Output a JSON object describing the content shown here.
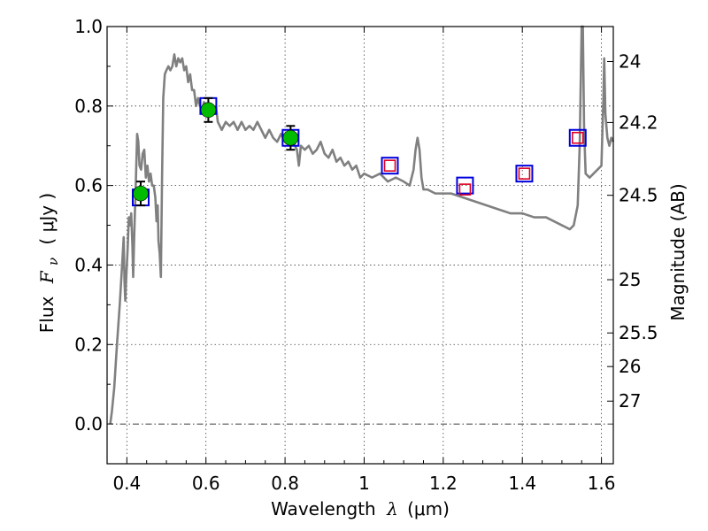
{
  "chart_data": {
    "type": "line",
    "xlabel": "Wavelength",
    "xlabel_symbol": "λ",
    "xlabel_unit": "(μm)",
    "ylabel": "Flux",
    "ylabel_symbol": "F",
    "ylabel_subscript": "ν",
    "ylabel_unit": "( μJy )",
    "y2label": "Magnitude (AB)",
    "xlim": [
      0.35,
      1.63
    ],
    "ylim": [
      -0.1,
      1.0
    ],
    "xticks": [
      0.4,
      0.6,
      0.8,
      1.0,
      1.2,
      1.4,
      1.6
    ],
    "xtick_labels": [
      "0.4",
      "0.6",
      "0.8",
      "1",
      "1.2",
      "1.4",
      "1.6"
    ],
    "yticks": [
      0.0,
      0.2,
      0.4,
      0.6,
      0.8,
      1.0
    ],
    "ytick_labels": [
      "0.0",
      "0.2",
      "0.4",
      "0.6",
      "0.8",
      "1.0"
    ],
    "magnitude_ticks": [
      "24",
      "24.2",
      "24.5",
      "25",
      "25.5",
      "26",
      "27"
    ],
    "grid": true,
    "model_color": "#808080",
    "measured_marker_color": "#00bb00",
    "box_color": "#0000dd",
    "model_marker_color": "#dd0022",
    "series": [
      {
        "name": "",
        "style": "line",
        "points": [
          [
            0.358,
            0.0
          ],
          [
            0.362,
            0.03
          ],
          [
            0.368,
            0.09
          ],
          [
            0.375,
            0.2
          ],
          [
            0.382,
            0.3
          ],
          [
            0.388,
            0.4
          ],
          [
            0.392,
            0.47
          ],
          [
            0.394,
            0.36
          ],
          [
            0.396,
            0.31
          ],
          [
            0.398,
            0.36
          ],
          [
            0.402,
            0.44
          ],
          [
            0.405,
            0.52
          ],
          [
            0.408,
            0.5
          ],
          [
            0.411,
            0.53
          ],
          [
            0.414,
            0.45
          ],
          [
            0.416,
            0.37
          ],
          [
            0.418,
            0.45
          ],
          [
            0.42,
            0.52
          ],
          [
            0.423,
            0.62
          ],
          [
            0.426,
            0.73
          ],
          [
            0.429,
            0.71
          ],
          [
            0.432,
            0.65
          ],
          [
            0.436,
            0.64
          ],
          [
            0.44,
            0.68
          ],
          [
            0.444,
            0.69
          ],
          [
            0.448,
            0.62
          ],
          [
            0.452,
            0.65
          ],
          [
            0.456,
            0.61
          ],
          [
            0.46,
            0.63
          ],
          [
            0.464,
            0.6
          ],
          [
            0.468,
            0.6
          ],
          [
            0.472,
            0.57
          ],
          [
            0.475,
            0.51
          ],
          [
            0.478,
            0.55
          ],
          [
            0.48,
            0.46
          ],
          [
            0.483,
            0.43
          ],
          [
            0.486,
            0.37
          ],
          [
            0.489,
            0.62
          ],
          [
            0.492,
            0.82
          ],
          [
            0.496,
            0.88
          ],
          [
            0.5,
            0.89
          ],
          [
            0.505,
            0.9
          ],
          [
            0.51,
            0.89
          ],
          [
            0.515,
            0.9
          ],
          [
            0.52,
            0.93
          ],
          [
            0.525,
            0.9
          ],
          [
            0.53,
            0.92
          ],
          [
            0.535,
            0.91
          ],
          [
            0.54,
            0.92
          ],
          [
            0.545,
            0.89
          ],
          [
            0.55,
            0.9
          ],
          [
            0.555,
            0.86
          ],
          [
            0.56,
            0.88
          ],
          [
            0.565,
            0.84
          ],
          [
            0.57,
            0.84
          ],
          [
            0.575,
            0.8
          ],
          [
            0.58,
            0.82
          ],
          [
            0.585,
            0.8
          ],
          [
            0.59,
            0.79
          ],
          [
            0.595,
            0.81
          ],
          [
            0.6,
            0.79
          ],
          [
            0.605,
            0.8
          ],
          [
            0.61,
            0.78
          ],
          [
            0.615,
            0.8
          ],
          [
            0.62,
            0.79
          ],
          [
            0.625,
            0.8
          ],
          [
            0.63,
            0.76
          ],
          [
            0.64,
            0.74
          ],
          [
            0.65,
            0.76
          ],
          [
            0.66,
            0.75
          ],
          [
            0.67,
            0.76
          ],
          [
            0.68,
            0.74
          ],
          [
            0.69,
            0.76
          ],
          [
            0.7,
            0.74
          ],
          [
            0.71,
            0.75
          ],
          [
            0.72,
            0.74
          ],
          [
            0.73,
            0.76
          ],
          [
            0.74,
            0.74
          ],
          [
            0.75,
            0.72
          ],
          [
            0.76,
            0.74
          ],
          [
            0.77,
            0.72
          ],
          [
            0.78,
            0.71
          ],
          [
            0.79,
            0.73
          ],
          [
            0.8,
            0.71
          ],
          [
            0.81,
            0.72
          ],
          [
            0.82,
            0.71
          ],
          [
            0.83,
            0.69
          ],
          [
            0.835,
            0.65
          ],
          [
            0.84,
            0.7
          ],
          [
            0.85,
            0.69
          ],
          [
            0.86,
            0.7
          ],
          [
            0.87,
            0.68
          ],
          [
            0.88,
            0.69
          ],
          [
            0.89,
            0.71
          ],
          [
            0.9,
            0.68
          ],
          [
            0.91,
            0.67
          ],
          [
            0.92,
            0.69
          ],
          [
            0.93,
            0.66
          ],
          [
            0.94,
            0.67
          ],
          [
            0.95,
            0.65
          ],
          [
            0.96,
            0.66
          ],
          [
            0.97,
            0.64
          ],
          [
            0.98,
            0.65
          ],
          [
            0.99,
            0.62
          ],
          [
            1.0,
            0.63
          ],
          [
            1.02,
            0.62
          ],
          [
            1.04,
            0.63
          ],
          [
            1.06,
            0.61
          ],
          [
            1.08,
            0.62
          ],
          [
            1.1,
            0.61
          ],
          [
            1.115,
            0.6
          ],
          [
            1.125,
            0.64
          ],
          [
            1.13,
            0.69
          ],
          [
            1.135,
            0.72
          ],
          [
            1.14,
            0.69
          ],
          [
            1.145,
            0.62
          ],
          [
            1.15,
            0.59
          ],
          [
            1.16,
            0.59
          ],
          [
            1.18,
            0.58
          ],
          [
            1.2,
            0.58
          ],
          [
            1.22,
            0.58
          ],
          [
            1.25,
            0.57
          ],
          [
            1.28,
            0.56
          ],
          [
            1.31,
            0.55
          ],
          [
            1.34,
            0.54
          ],
          [
            1.37,
            0.53
          ],
          [
            1.4,
            0.53
          ],
          [
            1.43,
            0.52
          ],
          [
            1.46,
            0.52
          ],
          [
            1.48,
            0.51
          ],
          [
            1.5,
            0.5
          ],
          [
            1.52,
            0.49
          ],
          [
            1.53,
            0.5
          ],
          [
            1.54,
            0.55
          ],
          [
            1.545,
            0.7
          ],
          [
            1.55,
            1.0
          ],
          [
            1.553,
            1.0
          ],
          [
            1.556,
            0.75
          ],
          [
            1.56,
            0.63
          ],
          [
            1.57,
            0.62
          ],
          [
            1.58,
            0.63
          ],
          [
            1.59,
            0.64
          ],
          [
            1.6,
            0.65
          ],
          [
            1.602,
            0.72
          ],
          [
            1.605,
            0.82
          ],
          [
            1.607,
            0.92
          ],
          [
            1.61,
            0.78
          ],
          [
            1.615,
            0.72
          ],
          [
            1.62,
            0.7
          ],
          [
            1.625,
            0.72
          ],
          [
            1.63,
            0.71
          ]
        ]
      },
      {
        "name": "",
        "style": "filled-circle-with-errorbar",
        "points": [
          {
            "x": 0.435,
            "y": 0.58,
            "err": 0.03
          },
          {
            "x": 0.606,
            "y": 0.79,
            "err": 0.03
          },
          {
            "x": 0.814,
            "y": 0.72,
            "err": 0.03
          }
        ]
      },
      {
        "name": "",
        "style": "open-square",
        "points": [
          {
            "x": 0.435,
            "y": 0.57
          },
          {
            "x": 0.606,
            "y": 0.8
          },
          {
            "x": 0.814,
            "y": 0.72
          },
          {
            "x": 1.065,
            "y": 0.65
          },
          {
            "x": 1.255,
            "y": 0.6
          },
          {
            "x": 1.405,
            "y": 0.63
          },
          {
            "x": 1.54,
            "y": 0.72
          }
        ]
      },
      {
        "name": "",
        "style": "small-open-square",
        "points": [
          {
            "x": 1.065,
            "y": 0.65
          },
          {
            "x": 1.255,
            "y": 0.59
          },
          {
            "x": 1.405,
            "y": 0.63
          },
          {
            "x": 1.54,
            "y": 0.72
          }
        ]
      }
    ]
  }
}
